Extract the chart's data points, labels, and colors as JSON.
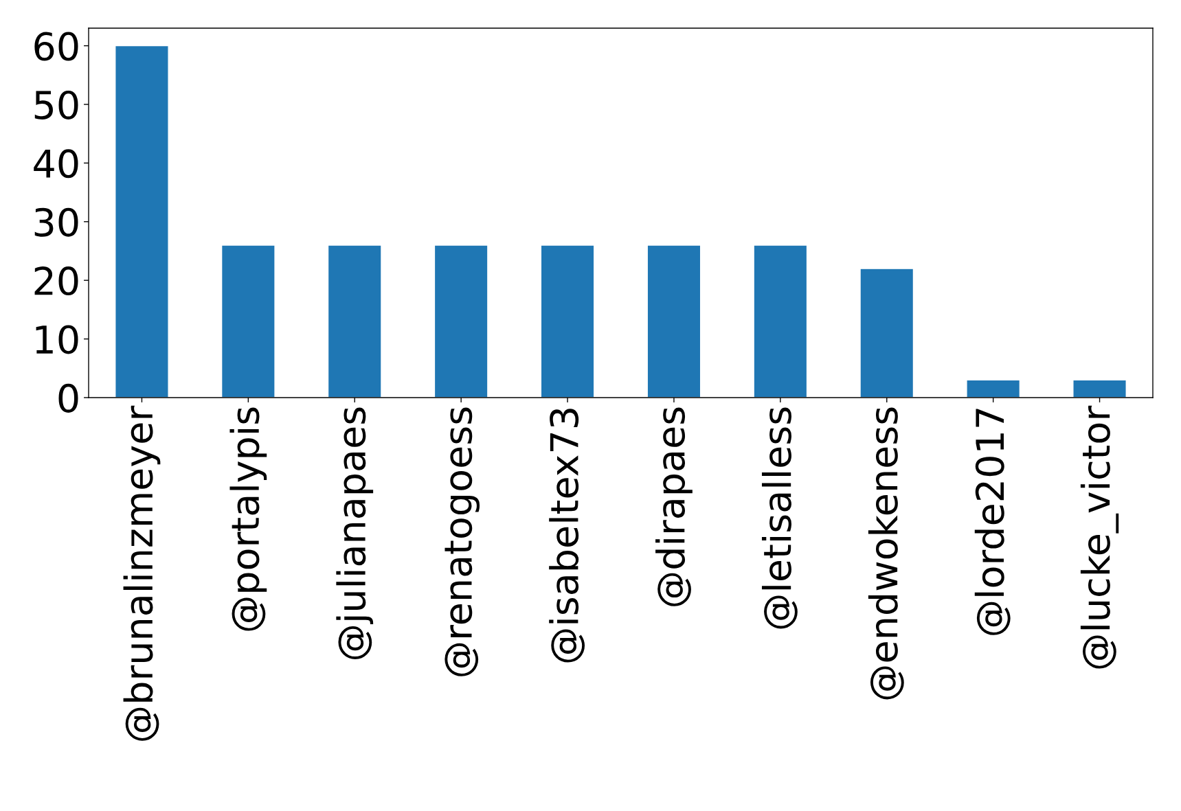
{
  "chart_data": {
    "type": "bar",
    "categories": [
      "@brunalinzmeyer",
      "@portalypis",
      "@julianapaes",
      "@renatogoess",
      "@isabeltex73",
      "@dirapaes",
      "@letisalless",
      "@endwokeness",
      "@lorde2017",
      "@lucke_victor"
    ],
    "values": [
      60,
      26,
      26,
      26,
      26,
      26,
      26,
      22,
      3,
      3
    ],
    "color": "#1f77b4",
    "ylim": [
      0,
      63
    ],
    "yticks": [
      0,
      10,
      20,
      30,
      40,
      50,
      60
    ],
    "grid": false
  }
}
